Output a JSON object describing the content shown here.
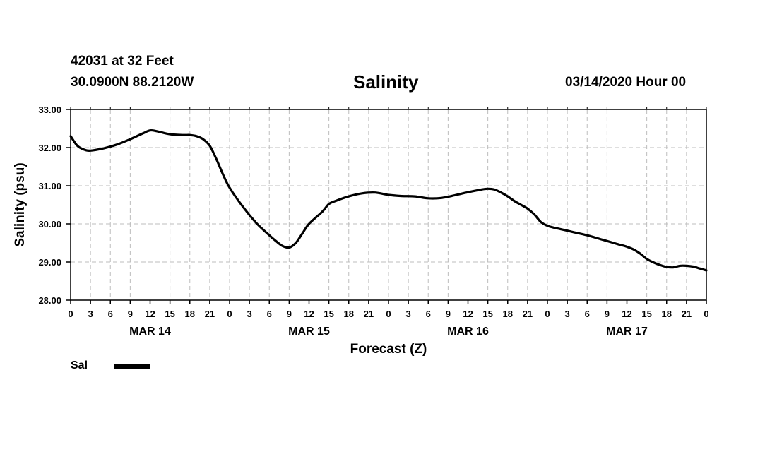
{
  "header": {
    "station": "42031 at 32 Feet",
    "coords": "30.0900N 88.2120W",
    "datetime": "03/14/2020 Hour 00"
  },
  "chart_data": {
    "type": "line",
    "title": "Salinity",
    "xlabel": "Forecast (Z)",
    "ylabel": "Salinity (psu)",
    "ylim": [
      28.0,
      33.0
    ],
    "xlim": [
      0,
      96
    ],
    "grid": true,
    "y_ticks": [
      "28.00",
      "29.00",
      "30.00",
      "31.00",
      "32.00",
      "33.00"
    ],
    "x_tick_labels": [
      "0",
      "3",
      "6",
      "9",
      "12",
      "15",
      "18",
      "21",
      "0",
      "3",
      "6",
      "9",
      "12",
      "15",
      "18",
      "21",
      "0",
      "3",
      "6",
      "9",
      "12",
      "15",
      "18",
      "21",
      "0",
      "3",
      "6",
      "9",
      "12",
      "15",
      "18",
      "21",
      "0"
    ],
    "day_labels": [
      {
        "label": "MAR 14",
        "hour": 12
      },
      {
        "label": "MAR 15",
        "hour": 36
      },
      {
        "label": "MAR 16",
        "hour": 60
      },
      {
        "label": "MAR 17",
        "hour": 84
      }
    ],
    "series": [
      {
        "name": "Sal",
        "x": [
          0,
          1,
          2,
          3,
          5,
          7,
          9,
          11,
          12,
          13,
          15,
          17,
          18,
          19,
          20,
          21,
          22,
          23,
          24,
          26,
          28,
          30,
          31,
          32,
          33,
          34,
          35,
          36,
          38,
          39,
          40,
          42,
          44,
          46,
          48,
          50,
          52,
          54,
          56,
          58,
          60,
          62,
          63,
          64,
          65,
          66,
          67,
          68,
          69,
          70,
          71,
          72,
          73,
          74,
          76,
          78,
          80,
          82,
          83,
          84,
          85,
          86,
          87,
          88,
          89,
          90,
          91,
          92,
          93,
          94,
          95,
          96
        ],
        "values": [
          32.3,
          32.05,
          31.95,
          31.92,
          31.98,
          32.08,
          32.22,
          32.38,
          32.45,
          32.43,
          32.35,
          32.33,
          32.33,
          32.3,
          32.22,
          32.05,
          31.7,
          31.3,
          30.95,
          30.45,
          30.03,
          29.7,
          29.55,
          29.42,
          29.38,
          29.5,
          29.75,
          30.0,
          30.32,
          30.52,
          30.6,
          30.72,
          30.8,
          30.82,
          30.76,
          30.73,
          30.72,
          30.67,
          30.68,
          30.75,
          30.83,
          30.9,
          30.92,
          30.9,
          30.82,
          30.72,
          30.6,
          30.5,
          30.4,
          30.25,
          30.05,
          29.95,
          29.9,
          29.86,
          29.78,
          29.7,
          29.6,
          29.5,
          29.45,
          29.4,
          29.33,
          29.22,
          29.08,
          28.99,
          28.92,
          28.87,
          28.86,
          28.9,
          28.9,
          28.88,
          28.83,
          28.78
        ]
      }
    ],
    "legend": [
      {
        "label": "Sal"
      }
    ]
  }
}
